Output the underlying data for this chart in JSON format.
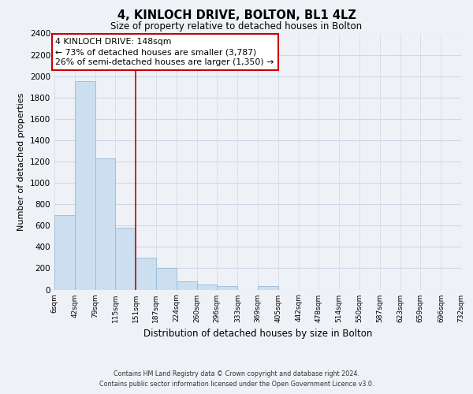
{
  "title": "4, KINLOCH DRIVE, BOLTON, BL1 4LZ",
  "subtitle": "Size of property relative to detached houses in Bolton",
  "xlabel": "Distribution of detached houses by size in Bolton",
  "ylabel": "Number of detached properties",
  "bin_edges": [
    6,
    42,
    79,
    115,
    151,
    187,
    224,
    260,
    296,
    333,
    369,
    405,
    442,
    478,
    514,
    550,
    587,
    623,
    659,
    696,
    732
  ],
  "bar_heights": [
    700,
    1950,
    1230,
    580,
    300,
    200,
    80,
    45,
    30,
    0,
    35,
    0,
    0,
    0,
    0,
    0,
    0,
    0,
    0,
    0
  ],
  "bar_color": "#ccdff0",
  "bar_edge_color": "#9ab8d4",
  "vline_x": 151,
  "vline_color": "#cc0000",
  "ylim": [
    0,
    2400
  ],
  "yticks": [
    0,
    200,
    400,
    600,
    800,
    1000,
    1200,
    1400,
    1600,
    1800,
    2000,
    2200,
    2400
  ],
  "annotation_line1": "4 KINLOCH DRIVE: 148sqm",
  "annotation_line2": "← 73% of detached houses are smaller (3,787)",
  "annotation_line3": "26% of semi-detached houses are larger (1,350) →",
  "annotation_box_color": "#ffffff",
  "annotation_box_edge": "#cc0000",
  "footer_line1": "Contains HM Land Registry data © Crown copyright and database right 2024.",
  "footer_line2": "Contains public sector information licensed under the Open Government Licence v3.0.",
  "tick_labels": [
    "6sqm",
    "42sqm",
    "79sqm",
    "115sqm",
    "151sqm",
    "187sqm",
    "224sqm",
    "260sqm",
    "296sqm",
    "333sqm",
    "369sqm",
    "405sqm",
    "442sqm",
    "478sqm",
    "514sqm",
    "550sqm",
    "587sqm",
    "623sqm",
    "659sqm",
    "696sqm",
    "732sqm"
  ],
  "background_color": "#eef2f7",
  "grid_color": "#d0d8e8"
}
